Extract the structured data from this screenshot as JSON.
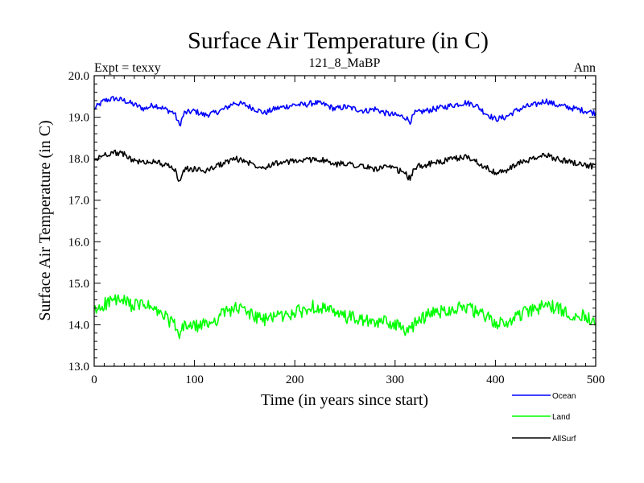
{
  "chart_data": {
    "type": "line",
    "title": "Surface Air Temperature (in C)",
    "subtitle": "121_8_MaBP",
    "left_note": "Expt = texxy",
    "right_note": "Ann",
    "xlabel": "Time (in years since start)",
    "ylabel": "Surface Air Temperature (in C)",
    "xlim": [
      0,
      500
    ],
    "ylim": [
      13.0,
      20.0
    ],
    "x_ticks": [
      0,
      100,
      200,
      300,
      400,
      500
    ],
    "x_tick_labels": [
      "0",
      "100",
      "200",
      "300",
      "400",
      "500"
    ],
    "y_ticks": [
      13.0,
      14.0,
      15.0,
      16.0,
      17.0,
      18.0,
      19.0,
      20.0
    ],
    "y_tick_labels": [
      "13.0",
      "14.0",
      "15.0",
      "16.0",
      "17.0",
      "18.0",
      "19.0",
      "20.0"
    ],
    "grid": false,
    "legend_position": "bottom-right, below plot",
    "x": [
      0,
      10,
      20,
      30,
      40,
      50,
      60,
      70,
      80,
      85,
      90,
      100,
      110,
      120,
      130,
      140,
      150,
      160,
      170,
      180,
      190,
      200,
      210,
      220,
      230,
      240,
      250,
      260,
      270,
      280,
      290,
      300,
      310,
      315,
      320,
      330,
      340,
      350,
      360,
      370,
      380,
      390,
      400,
      410,
      420,
      430,
      440,
      450,
      460,
      470,
      480,
      490,
      500
    ],
    "series": [
      {
        "name": "Ocean",
        "color": "#0000ff",
        "values": [
          19.2,
          19.4,
          19.45,
          19.4,
          19.3,
          19.2,
          19.3,
          19.2,
          19.1,
          18.8,
          19.1,
          19.15,
          19.05,
          19.1,
          19.2,
          19.35,
          19.3,
          19.2,
          19.1,
          19.2,
          19.25,
          19.3,
          19.3,
          19.35,
          19.3,
          19.2,
          19.25,
          19.2,
          19.15,
          19.2,
          19.1,
          19.05,
          19.0,
          18.9,
          19.1,
          19.15,
          19.2,
          19.25,
          19.3,
          19.35,
          19.3,
          19.1,
          18.95,
          19.0,
          19.15,
          19.25,
          19.3,
          19.4,
          19.3,
          19.25,
          19.2,
          19.15,
          19.1
        ]
      },
      {
        "name": "Land",
        "color": "#00ff00",
        "values": [
          14.3,
          14.5,
          14.6,
          14.55,
          14.45,
          14.5,
          14.35,
          14.2,
          14.0,
          13.7,
          14.0,
          13.95,
          14.0,
          14.1,
          14.3,
          14.4,
          14.35,
          14.2,
          14.1,
          14.25,
          14.2,
          14.3,
          14.35,
          14.45,
          14.4,
          14.25,
          14.2,
          14.15,
          14.1,
          14.0,
          14.1,
          14.0,
          13.9,
          13.8,
          14.1,
          14.2,
          14.3,
          14.35,
          14.4,
          14.45,
          14.3,
          14.2,
          14.05,
          14.0,
          14.2,
          14.3,
          14.35,
          14.5,
          14.4,
          14.3,
          14.25,
          14.2,
          14.15
        ]
      },
      {
        "name": "AllSurf",
        "color": "#000000",
        "values": [
          17.95,
          18.1,
          18.15,
          18.1,
          17.95,
          17.9,
          17.95,
          17.85,
          17.75,
          17.45,
          17.75,
          17.75,
          17.7,
          17.8,
          17.9,
          18.0,
          17.95,
          17.85,
          17.8,
          17.9,
          17.9,
          17.95,
          17.95,
          18.0,
          17.95,
          17.85,
          17.9,
          17.85,
          17.8,
          17.75,
          17.8,
          17.75,
          17.65,
          17.5,
          17.8,
          17.85,
          17.9,
          17.95,
          18.0,
          18.05,
          17.95,
          17.8,
          17.65,
          17.7,
          17.85,
          17.95,
          18.0,
          18.1,
          18.0,
          17.95,
          17.9,
          17.85,
          17.8
        ]
      }
    ]
  }
}
